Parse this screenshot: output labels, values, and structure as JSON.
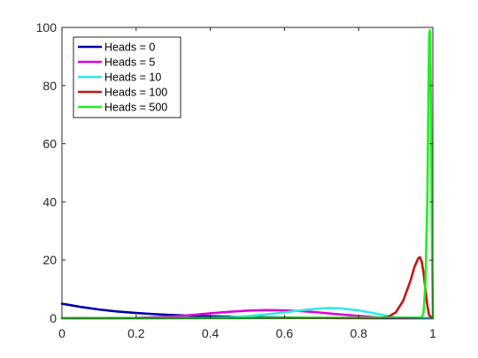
{
  "chart_data": {
    "type": "line",
    "title": "",
    "xlabel": "",
    "ylabel": "",
    "xlim": [
      0,
      1
    ],
    "ylim": [
      0,
      100
    ],
    "xticks": [
      "0",
      "0.2",
      "0.4",
      "0.6",
      "0.8",
      "1"
    ],
    "yticks": [
      "0",
      "20",
      "40",
      "60",
      "80",
      "100"
    ],
    "grid": false,
    "legend_position": "top-left",
    "series": [
      {
        "name": "Heads = 0",
        "color": "#0000aa",
        "x": [
          0,
          0.05,
          0.1,
          0.15,
          0.2,
          0.25,
          0.3,
          0.35,
          0.4,
          0.45,
          0.5,
          0.55,
          0.6,
          0.65,
          0.7,
          0.75,
          0.8,
          0.85,
          0.9,
          0.95,
          1
        ],
        "y": [
          5.0,
          3.9,
          3.0,
          2.3,
          1.8,
          1.4,
          1.1,
          0.85,
          0.65,
          0.5,
          0.38,
          0.28,
          0.2,
          0.14,
          0.1,
          0.06,
          0.04,
          0.02,
          0.01,
          0.0,
          0.0
        ]
      },
      {
        "name": "Heads = 5",
        "color": "#dd00dd",
        "x": [
          0,
          0.2,
          0.3,
          0.35,
          0.4,
          0.45,
          0.5,
          0.55,
          0.6,
          0.65,
          0.7,
          0.75,
          0.8,
          0.85,
          0.9,
          1
        ],
        "y": [
          0.0,
          0.1,
          0.6,
          1.1,
          1.7,
          2.2,
          2.6,
          2.8,
          2.7,
          2.4,
          1.9,
          1.3,
          0.8,
          0.3,
          0.1,
          0.0
        ]
      },
      {
        "name": "Heads = 10",
        "color": "#33e8e8",
        "x": [
          0,
          0.4,
          0.45,
          0.5,
          0.55,
          0.6,
          0.65,
          0.7,
          0.72,
          0.75,
          0.8,
          0.85,
          0.88,
          0.9,
          1
        ],
        "y": [
          0.0,
          0.1,
          0.3,
          0.7,
          1.3,
          2.0,
          2.8,
          3.4,
          3.5,
          3.4,
          2.7,
          1.5,
          0.7,
          0.3,
          0.0
        ]
      },
      {
        "name": "Heads = 100",
        "color": "#c81414",
        "x": [
          0,
          0.86,
          0.88,
          0.9,
          0.92,
          0.94,
          0.95,
          0.96,
          0.965,
          0.97,
          0.975,
          0.98,
          0.985,
          0.99,
          1
        ],
        "y": [
          0.0,
          0.1,
          0.5,
          2.0,
          6.0,
          13.0,
          17.5,
          20.5,
          21.0,
          19.5,
          15.5,
          10.0,
          4.5,
          1.0,
          0.0
        ]
      },
      {
        "name": "Heads = 500",
        "color": "#22ee22",
        "x": [
          0,
          0.97,
          0.975,
          0.98,
          0.985,
          0.988,
          0.99,
          0.992,
          0.994,
          0.996,
          0.998,
          1
        ],
        "y": [
          0.0,
          0.2,
          2.0,
          12.0,
          40.0,
          75.0,
          97.0,
          99.0,
          85.0,
          55.0,
          20.0,
          0.0
        ]
      }
    ]
  }
}
